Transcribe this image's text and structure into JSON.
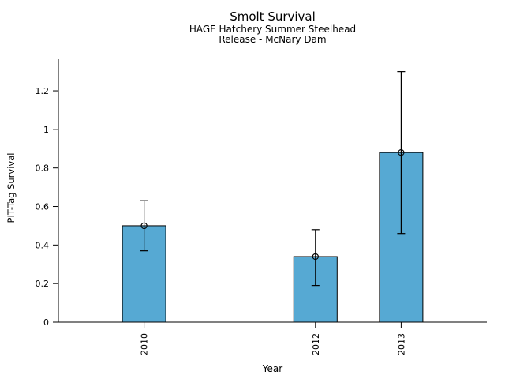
{
  "chart_data": {
    "type": "bar",
    "title": "Smolt Survival",
    "subtitle_lines": [
      "HAGE Hatchery Summer Steelhead",
      "Release - McNary Dam"
    ],
    "xlabel": "Year",
    "ylabel": "PIT-Tag Survival",
    "categories": [
      "2010",
      "2012",
      "2013"
    ],
    "x_numeric": [
      2010,
      2012,
      2013
    ],
    "values": [
      0.5,
      0.34,
      0.88
    ],
    "error_low": [
      0.37,
      0.19,
      0.46
    ],
    "error_high": [
      0.63,
      0.48,
      1.3
    ],
    "xlim": [
      2009,
      2014
    ],
    "ylim": [
      0,
      1.364
    ],
    "yticks": [
      0,
      0.2,
      0.4,
      0.6,
      0.8,
      1.0,
      1.2
    ],
    "ytick_labels": [
      "0",
      "0.2",
      "0.4",
      "0.6",
      "0.8",
      "1",
      "1.2"
    ],
    "grid": false,
    "legend_position": "none",
    "bar_color": "#56a9d3",
    "bar_edge_color": "#000000",
    "axis_color": "#000000",
    "background_color": "#ffffff",
    "marker": "open-circle",
    "error_bars": true,
    "x_tick_label_rotation": -90
  }
}
